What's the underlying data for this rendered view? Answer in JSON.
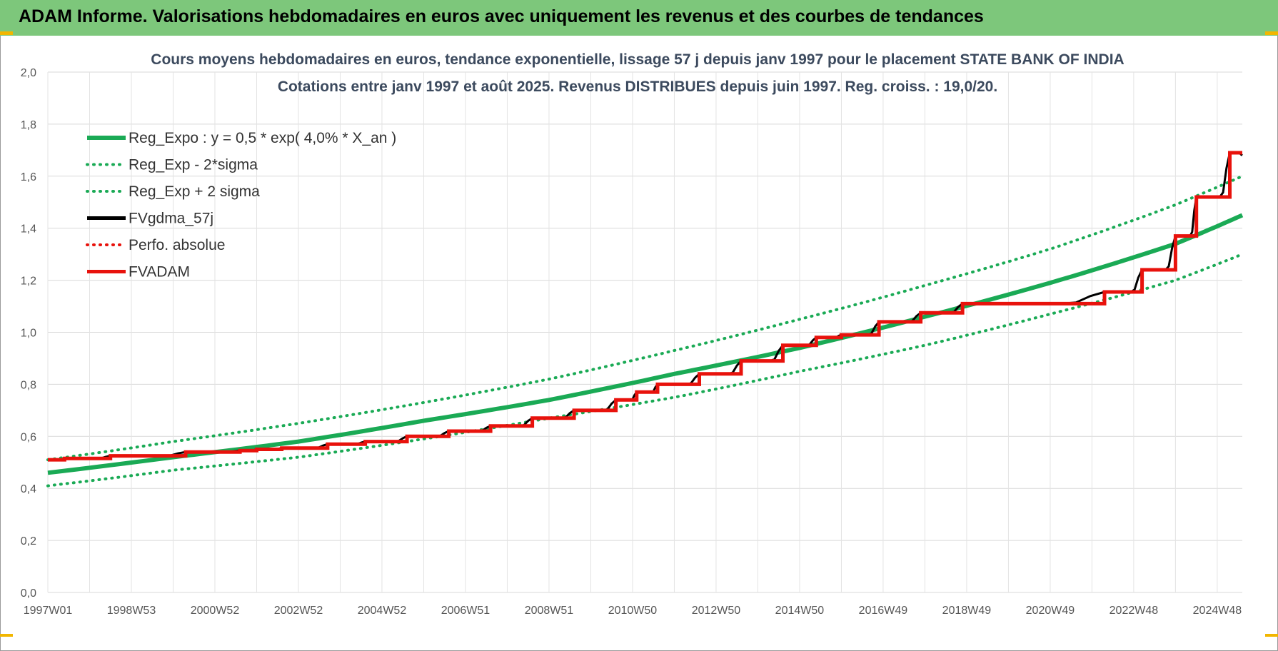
{
  "banner": {
    "title": "ADAM Informe. Valorisations hebdomadaires en euros avec uniquement les revenus et des courbes de tendances"
  },
  "colors": {
    "banner": "#7dc77b",
    "trend": "#1aaa55",
    "fv_gdma": "#000000",
    "fvadam": "#e8120c",
    "grid": "#d9d9d9"
  },
  "chart_data": {
    "type": "line",
    "title": [
      "Cours moyens hebdomadaires en euros, tendance exponentielle, lissage 57 j depuis janv 1997 pour le placement STATE BANK OF INDIA",
      "Cotations entre janv 1997 et août 2025. Revenus DISTRIBUES depuis juin 1997. Reg. croiss. : 19,0/20."
    ],
    "xlabel": "",
    "ylabel": "",
    "x_range": [
      1997.0,
      2025.6
    ],
    "ylim": [
      0,
      2.0
    ],
    "y_ticks": [
      "0,0",
      "0,2",
      "0,4",
      "0,6",
      "0,8",
      "1,0",
      "1,2",
      "1,4",
      "1,6",
      "1,8",
      "2,0"
    ],
    "x_ticks": [
      {
        "label": "1997W01",
        "x": 1997.0
      },
      {
        "label": "1998W53",
        "x": 1999.0
      },
      {
        "label": "2000W52",
        "x": 2001.0
      },
      {
        "label": "2002W52",
        "x": 2003.0
      },
      {
        "label": "2004W52",
        "x": 2005.0
      },
      {
        "label": "2006W51",
        "x": 2007.0
      },
      {
        "label": "2008W51",
        "x": 2009.0
      },
      {
        "label": "2010W50",
        "x": 2011.0
      },
      {
        "label": "2012W50",
        "x": 2013.0
      },
      {
        "label": "2014W50",
        "x": 2015.0
      },
      {
        "label": "2016W49",
        "x": 2017.0
      },
      {
        "label": "2018W49",
        "x": 2019.0
      },
      {
        "label": "2020W49",
        "x": 2021.0
      },
      {
        "label": "2022W48",
        "x": 2023.0
      },
      {
        "label": "2024W48",
        "x": 2025.0
      }
    ],
    "grid": true,
    "legend_position": "top-left",
    "legend": [
      {
        "name": "Reg_Expo : y = 0,5 * exp( 4,0% *  X_an )",
        "style": "solid",
        "color": "#1aaa55"
      },
      {
        "name": "Reg_Exp - 2*sigma",
        "style": "dotted",
        "color": "#1aaa55"
      },
      {
        "name": "Reg_Exp + 2 sigma",
        "style": "dotted",
        "color": "#1aaa55"
      },
      {
        "name": "FVgdma_57j",
        "style": "solid",
        "color": "#000000"
      },
      {
        "name": "Perfo. absolue",
        "style": "dotted",
        "color": "#e8120c"
      },
      {
        "name": "FVADAM",
        "style": "solid",
        "color": "#e8120c"
      }
    ],
    "series": [
      {
        "name": "Reg_Expo : y = 0,5 * exp( 4,0% *  X_an )",
        "x": [
          1997.0,
          2000.0,
          2003.0,
          2006.0,
          2009.0,
          2012.0,
          2015.0,
          2018.0,
          2021.0,
          2024.0,
          2025.6
        ],
        "y": [
          0.46,
          0.52,
          0.58,
          0.66,
          0.74,
          0.84,
          0.94,
          1.06,
          1.19,
          1.34,
          1.45
        ]
      },
      {
        "name": "Reg_Exp - 2*sigma",
        "x": [
          1997.0,
          2000.0,
          2003.0,
          2006.0,
          2009.0,
          2012.0,
          2015.0,
          2018.0,
          2021.0,
          2024.0,
          2025.6
        ],
        "y": [
          0.41,
          0.47,
          0.52,
          0.59,
          0.67,
          0.75,
          0.85,
          0.95,
          1.07,
          1.2,
          1.3
        ]
      },
      {
        "name": "Reg_Exp + 2 sigma",
        "x": [
          1997.0,
          2000.0,
          2003.0,
          2006.0,
          2009.0,
          2012.0,
          2015.0,
          2018.0,
          2021.0,
          2024.0,
          2025.6
        ],
        "y": [
          0.51,
          0.58,
          0.65,
          0.73,
          0.82,
          0.93,
          1.05,
          1.18,
          1.32,
          1.49,
          1.6
        ]
      },
      {
        "name": "FVADAM",
        "steps": [
          {
            "x": 1997.0,
            "y": 0.51
          },
          {
            "x": 1997.4,
            "y": 0.515
          },
          {
            "x": 1998.5,
            "y": 0.525
          },
          {
            "x": 2000.3,
            "y": 0.54
          },
          {
            "x": 2001.6,
            "y": 0.545
          },
          {
            "x": 2002.0,
            "y": 0.55
          },
          {
            "x": 2002.6,
            "y": 0.555
          },
          {
            "x": 2003.7,
            "y": 0.57
          },
          {
            "x": 2004.6,
            "y": 0.58
          },
          {
            "x": 2005.6,
            "y": 0.6
          },
          {
            "x": 2006.6,
            "y": 0.62
          },
          {
            "x": 2007.6,
            "y": 0.64
          },
          {
            "x": 2008.6,
            "y": 0.67
          },
          {
            "x": 2009.6,
            "y": 0.7
          },
          {
            "x": 2010.6,
            "y": 0.74
          },
          {
            "x": 2011.1,
            "y": 0.77
          },
          {
            "x": 2011.6,
            "y": 0.8
          },
          {
            "x": 2012.6,
            "y": 0.84
          },
          {
            "x": 2013.6,
            "y": 0.89
          },
          {
            "x": 2014.6,
            "y": 0.95
          },
          {
            "x": 2015.4,
            "y": 0.98
          },
          {
            "x": 2016.0,
            "y": 0.99
          },
          {
            "x": 2016.9,
            "y": 1.04
          },
          {
            "x": 2017.9,
            "y": 1.075
          },
          {
            "x": 2018.9,
            "y": 1.11
          },
          {
            "x": 2022.3,
            "y": 1.155
          },
          {
            "x": 2023.2,
            "y": 1.24
          },
          {
            "x": 2024.0,
            "y": 1.37
          },
          {
            "x": 2024.5,
            "y": 1.52
          },
          {
            "x": 2025.3,
            "y": 1.69
          }
        ],
        "x_end": 2025.6
      },
      {
        "name": "FVgdma_57j",
        "smoothing_of": "FVADAM",
        "y_end": 1.68
      }
    ]
  }
}
